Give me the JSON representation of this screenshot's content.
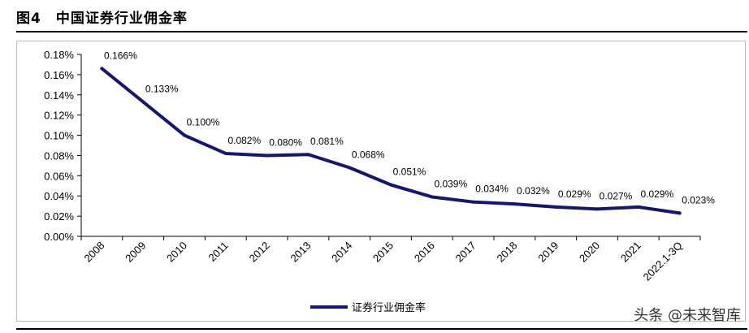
{
  "figure_title": "图4　中国证券行业佣金率",
  "watermark": "头条 @未来智库",
  "colors": {
    "line": "#141676"
  },
  "chart_data": {
    "type": "line",
    "title": "",
    "xlabel": "",
    "ylabel": "",
    "categories": [
      "2008",
      "2009",
      "2010",
      "2011",
      "2012",
      "2013",
      "2014",
      "2015",
      "2016",
      "2017",
      "2018",
      "2019",
      "2020",
      "2021",
      "2022.1-3Q"
    ],
    "series": [
      {
        "name": "证券行业佣金率",
        "values": [
          0.166,
          0.133,
          0.1,
          0.082,
          0.08,
          0.081,
          0.068,
          0.051,
          0.039,
          0.034,
          0.032,
          0.029,
          0.027,
          0.029,
          0.023
        ],
        "labels": [
          "0.166%",
          "0.133%",
          "0.100%",
          "0.082%",
          "0.080%",
          "0.081%",
          "0.068%",
          "0.051%",
          "0.039%",
          "0.034%",
          "0.032%",
          "0.029%",
          "0.027%",
          "0.029%",
          "0.023%"
        ]
      }
    ],
    "ylim": [
      0,
      0.18
    ],
    "yticks": [
      0.18,
      0.16,
      0.14,
      0.12,
      0.1,
      0.08,
      0.06,
      0.04,
      0.02,
      0.0
    ],
    "ytick_labels": [
      "0.18%",
      "0.16%",
      "0.14%",
      "0.12%",
      "0.10%",
      "0.08%",
      "0.06%",
      "0.04%",
      "0.02%",
      "0.00%"
    ],
    "grid": false,
    "legend_position": "bottom"
  }
}
